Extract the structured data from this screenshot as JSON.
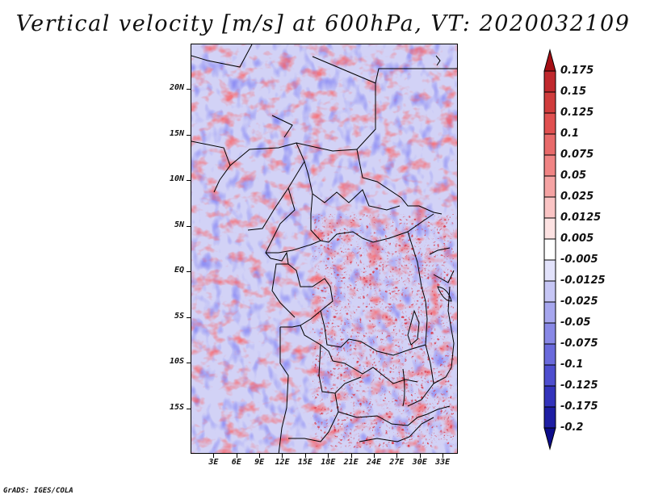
{
  "title": "Vertical velocity [m/s] at 600hPa, VT: 2020032109",
  "credit": "GrADS: IGES/COLA",
  "map": {
    "lon_range": [
      0,
      35
    ],
    "lat_range": [
      -20,
      25
    ],
    "lat_labels": [
      {
        "lat": 20,
        "text": "20N"
      },
      {
        "lat": 15,
        "text": "15N"
      },
      {
        "lat": 10,
        "text": "10N"
      },
      {
        "lat": 5,
        "text": "5N"
      },
      {
        "lat": 0,
        "text": "EQ"
      },
      {
        "lat": -5,
        "text": "5S"
      },
      {
        "lat": -10,
        "text": "10S"
      },
      {
        "lat": -15,
        "text": "15S"
      }
    ],
    "lon_labels": [
      {
        "lon": 3,
        "text": "3E"
      },
      {
        "lon": 6,
        "text": "6E"
      },
      {
        "lon": 9,
        "text": "9E"
      },
      {
        "lon": 12,
        "text": "12E"
      },
      {
        "lon": 15,
        "text": "15E"
      },
      {
        "lon": 18,
        "text": "18E"
      },
      {
        "lon": 21,
        "text": "21E"
      },
      {
        "lon": 24,
        "text": "24E"
      },
      {
        "lon": 27,
        "text": "27E"
      },
      {
        "lon": 30,
        "text": "30E"
      },
      {
        "lon": 33,
        "text": "33E"
      }
    ]
  },
  "colorbar": {
    "labels": [
      "0.175",
      "0.15",
      "0.125",
      "0.1",
      "0.075",
      "0.05",
      "0.025",
      "0.0125",
      "0.005",
      "-0.005",
      "-0.0125",
      "-0.025",
      "-0.05",
      "-0.075",
      "-0.1",
      "-0.125",
      "-0.175",
      "-0.2"
    ],
    "colors": [
      "#a50f15",
      "#c0282d",
      "#d03c3c",
      "#e05050",
      "#e86a6a",
      "#f08484",
      "#f5a3a3",
      "#fac4c4",
      "#fde2e2",
      "#ffffff",
      "#e2e2fb",
      "#c6c6f5",
      "#a6a6ee",
      "#8888e6",
      "#6a6adc",
      "#4e4ecf",
      "#3333bb",
      "#1e1ea3",
      "#0c0c8a"
    ]
  }
}
